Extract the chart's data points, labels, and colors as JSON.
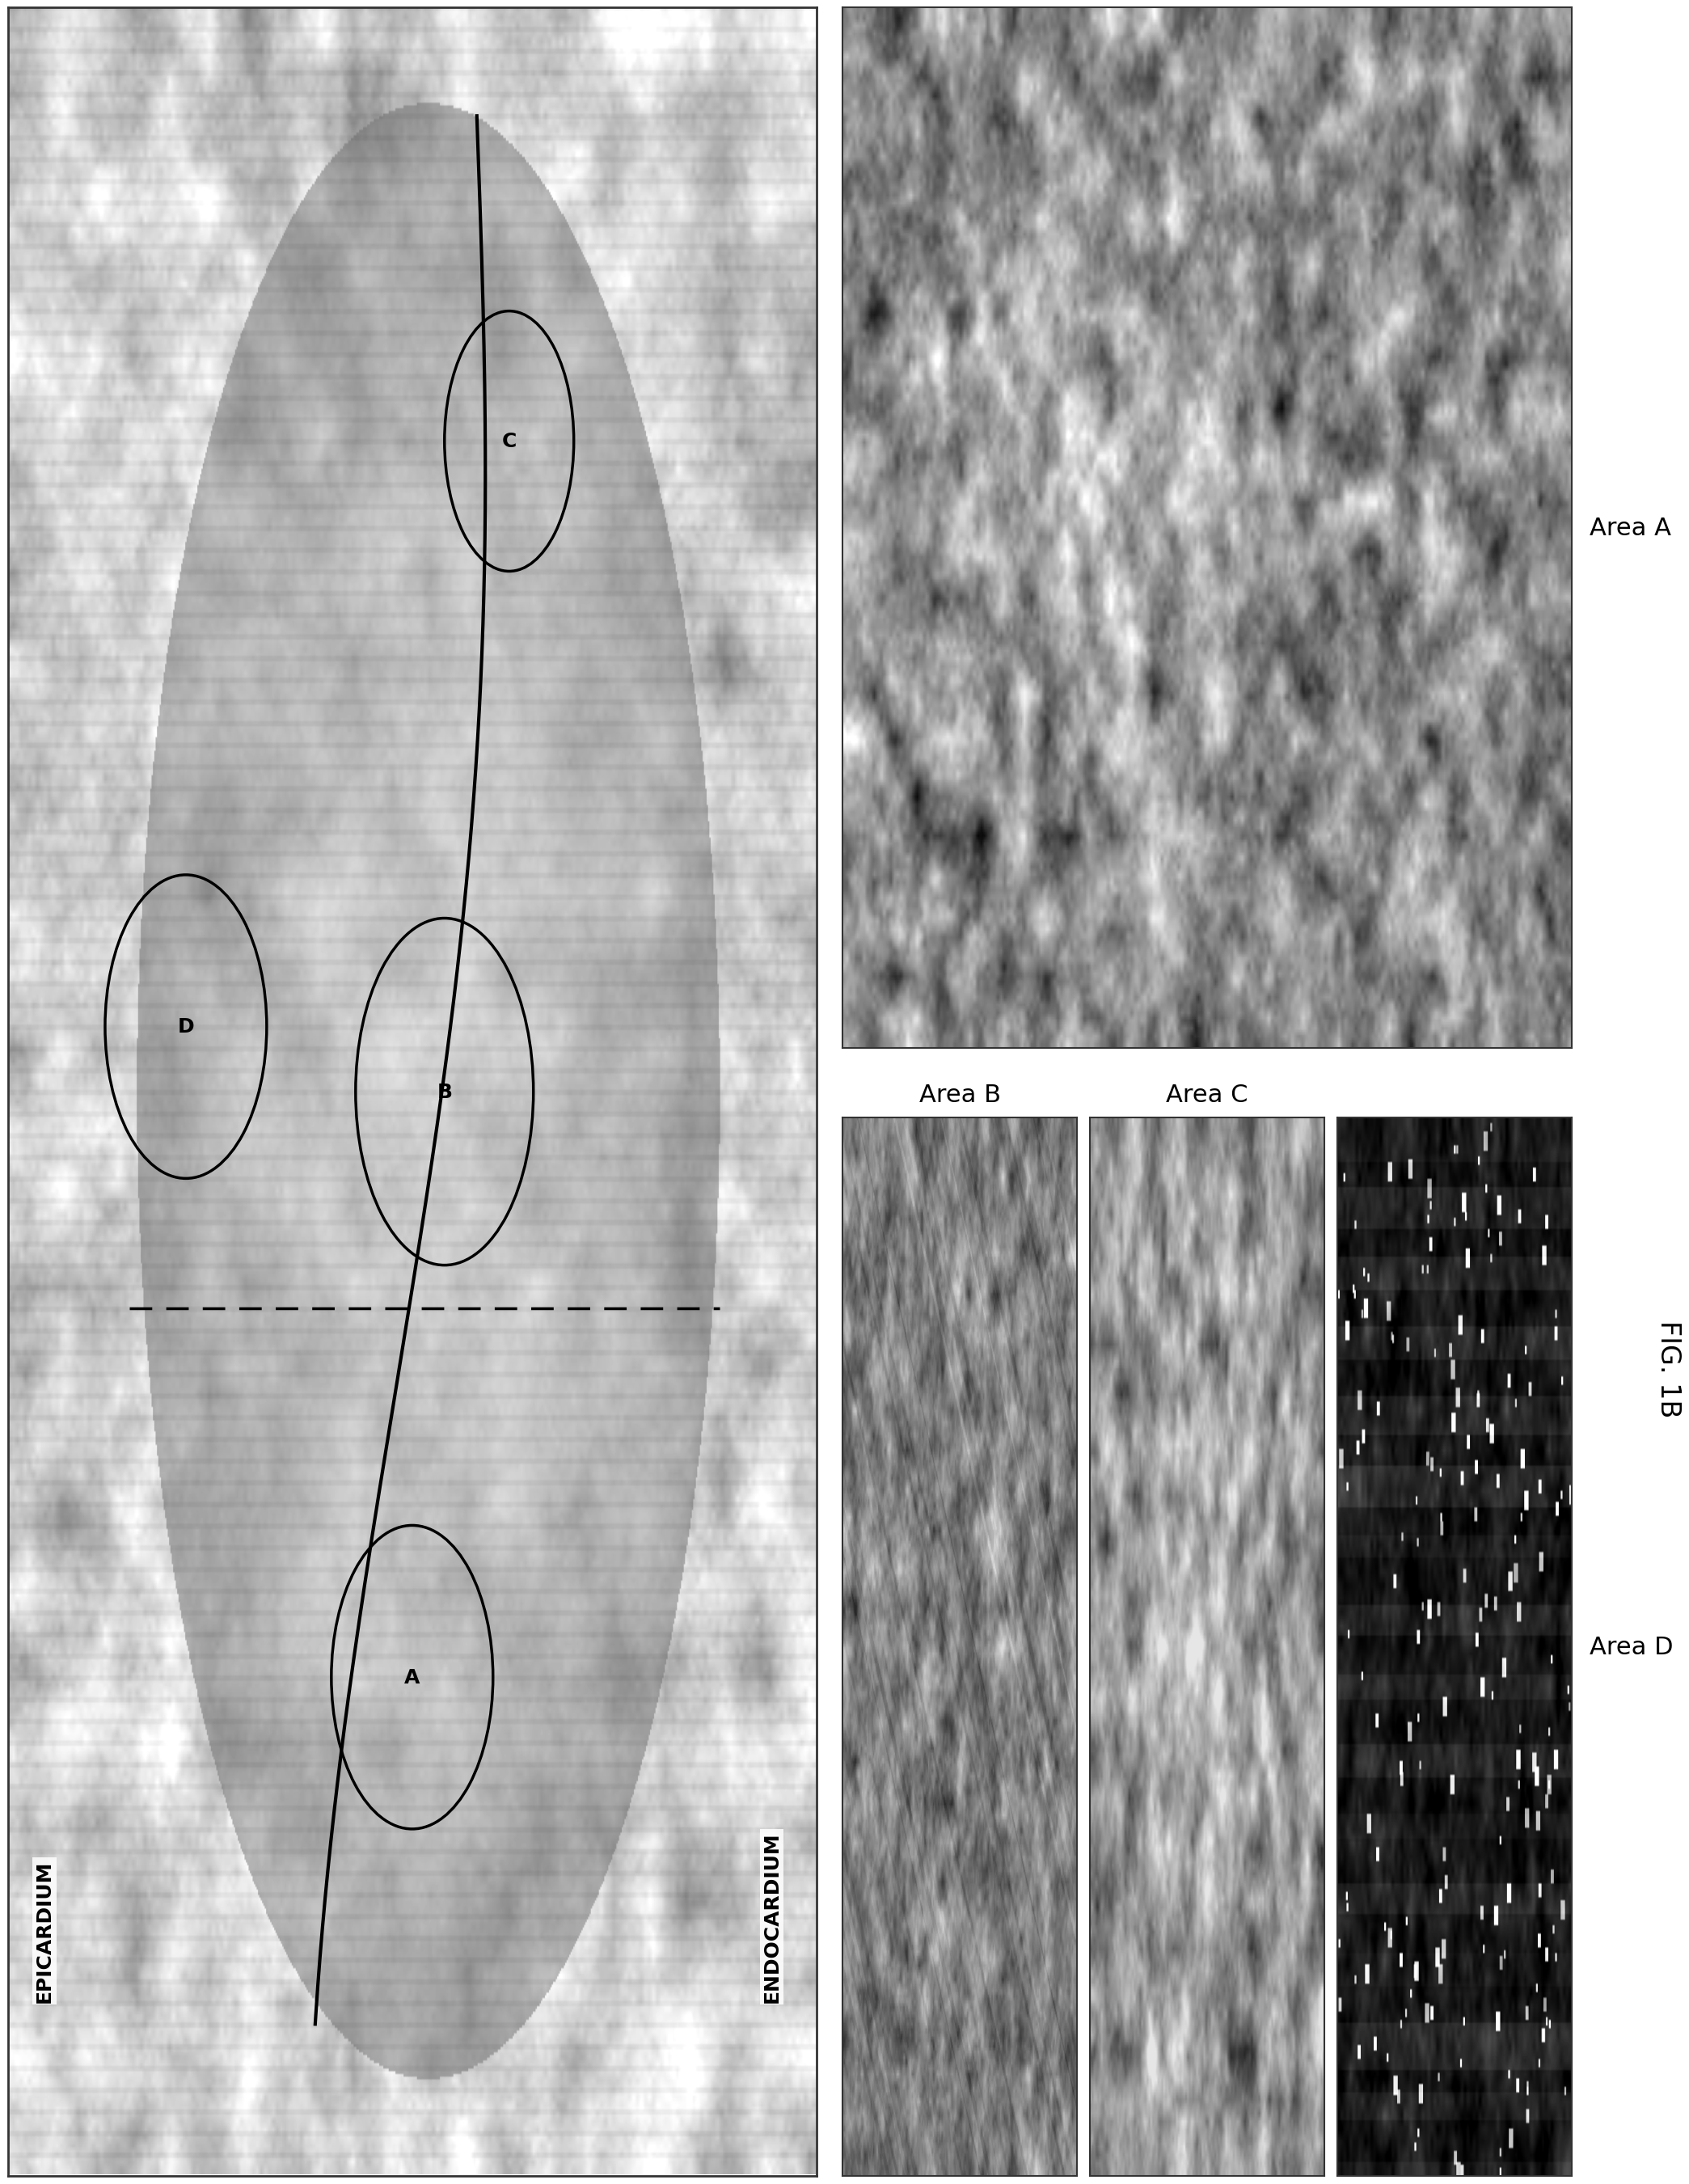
{
  "fig_label": "FIG. 1B",
  "background_color": "#ffffff",
  "area_a_label": "Area A",
  "area_b_label": "Area B",
  "area_c_label": "Area C",
  "area_d_label": "Area D",
  "epicardium_label": "EPICARDIUM",
  "endocardium_label": "ENDOCARDIUM",
  "font_size_panel": 22,
  "font_size_axis": 18,
  "font_size_fig": 24,
  "font_size_circle": 18
}
